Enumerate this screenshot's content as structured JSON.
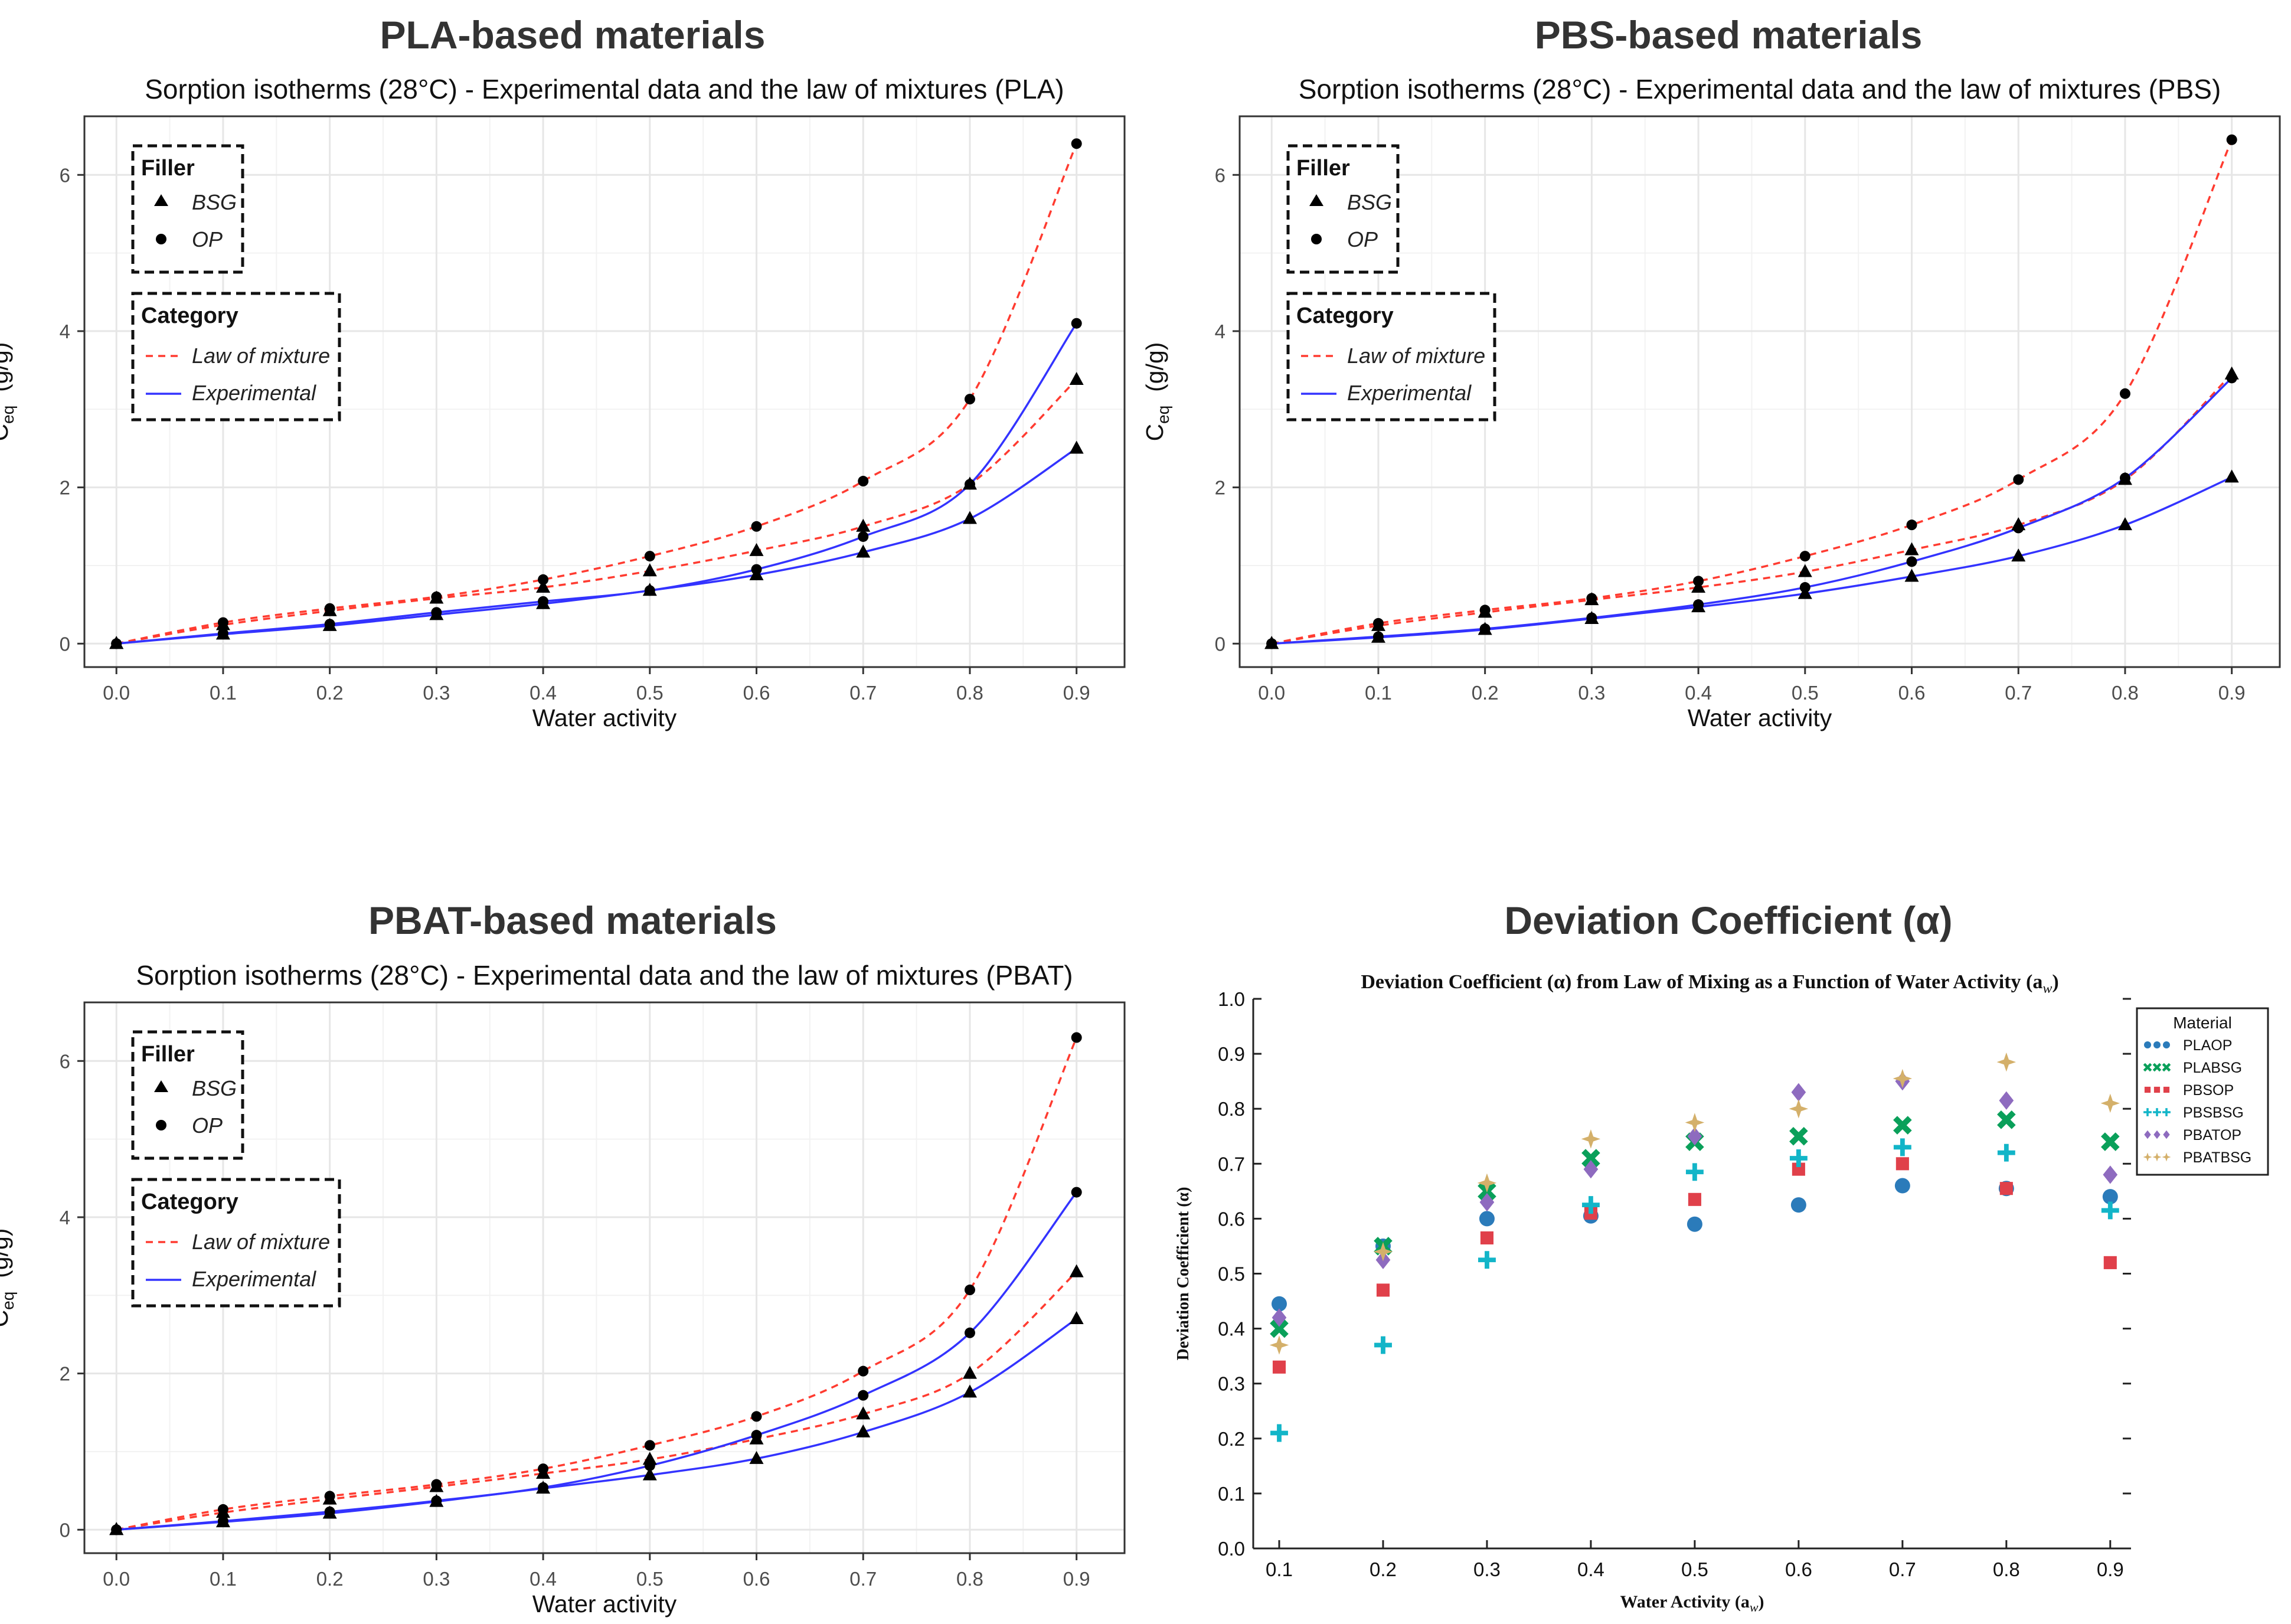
{
  "panels": [
    {
      "heading": "PLA-based materials"
    },
    {
      "heading": "PBS-based materials"
    },
    {
      "heading": "PBAT-based materials"
    },
    {
      "heading": "Deviation Coefficient (α)"
    }
  ],
  "legend": {
    "filler_title": "Filler",
    "filler_items": [
      "BSG",
      "OP"
    ],
    "category_title": "Category",
    "category_items": [
      "Law of mixture",
      "Experimental"
    ],
    "material_title": "Material"
  },
  "colors": {
    "law_of_mixture": "#ff3b30",
    "experimental": "#3333ff",
    "marker": "#000000",
    "PLAOP": "#2b7bba",
    "PLABSG": "#0aa05a",
    "PBSOP": "#e0404a",
    "PBSBSG": "#12b5c8",
    "PBATOP": "#8e6bbf",
    "PBATBSG": "#d4b06a"
  },
  "chart_data": [
    {
      "type": "line",
      "title": "Sorption isotherms (28°C) - Experimental data and the law of mixtures (PLA)",
      "xlabel": "Water activity",
      "ylabel": "C",
      "ylabel_sub": "eq",
      "ylabel_unit": "(g/g)",
      "x": [
        0.0,
        0.1,
        0.2,
        0.3,
        0.4,
        0.5,
        0.6,
        0.7,
        0.8,
        0.9
      ],
      "xticks": [
        "0.0",
        "0.1",
        "0.2",
        "0.3",
        "0.4",
        "0.5",
        "0.6",
        "0.7",
        "0.8",
        "0.9"
      ],
      "yticks": [
        "0",
        "2",
        "4",
        "6"
      ],
      "xlim": [
        -0.03,
        0.945
      ],
      "ylim": [
        -0.3,
        6.75
      ],
      "series": [
        {
          "name": "OP",
          "category": "Law of mixture",
          "marker": "circle",
          "values": [
            0.0,
            0.27,
            0.45,
            0.6,
            0.82,
            1.12,
            1.5,
            2.08,
            3.13,
            6.4
          ]
        },
        {
          "name": "BSG",
          "category": "Law of mixture",
          "marker": "triangle",
          "values": [
            0.0,
            0.24,
            0.42,
            0.58,
            0.72,
            0.93,
            1.19,
            1.5,
            2.04,
            3.38
          ]
        },
        {
          "name": "OP",
          "category": "Experimental",
          "marker": "circle",
          "values": [
            0.0,
            0.13,
            0.25,
            0.4,
            0.54,
            0.68,
            0.95,
            1.37,
            2.04,
            4.1
          ]
        },
        {
          "name": "BSG",
          "category": "Experimental",
          "marker": "triangle",
          "values": [
            0.0,
            0.12,
            0.23,
            0.37,
            0.51,
            0.68,
            0.88,
            1.17,
            1.6,
            2.5
          ]
        }
      ]
    },
    {
      "type": "line",
      "title": "Sorption isotherms (28°C) - Experimental data and the law of mixtures (PBS)",
      "xlabel": "Water activity",
      "ylabel": "C",
      "ylabel_sub": "eq",
      "ylabel_unit": "(g/g)",
      "x": [
        0.0,
        0.1,
        0.2,
        0.3,
        0.4,
        0.5,
        0.6,
        0.7,
        0.8,
        0.9
      ],
      "xticks": [
        "0.0",
        "0.1",
        "0.2",
        "0.3",
        "0.4",
        "0.5",
        "0.6",
        "0.7",
        "0.8",
        "0.9"
      ],
      "yticks": [
        "0",
        "2",
        "4",
        "6"
      ],
      "xlim": [
        -0.03,
        0.945
      ],
      "ylim": [
        -0.3,
        6.75
      ],
      "series": [
        {
          "name": "OP",
          "category": "Law of mixture",
          "marker": "circle",
          "values": [
            0.0,
            0.26,
            0.43,
            0.58,
            0.8,
            1.12,
            1.52,
            2.1,
            3.2,
            6.45
          ]
        },
        {
          "name": "BSG",
          "category": "Law of mixture",
          "marker": "triangle",
          "values": [
            0.0,
            0.23,
            0.4,
            0.56,
            0.72,
            0.92,
            1.2,
            1.52,
            2.1,
            3.45
          ]
        },
        {
          "name": "OP",
          "category": "Experimental",
          "marker": "circle",
          "values": [
            0.0,
            0.09,
            0.19,
            0.33,
            0.5,
            0.72,
            1.05,
            1.48,
            2.12,
            3.4
          ]
        },
        {
          "name": "BSG",
          "category": "Experimental",
          "marker": "triangle",
          "values": [
            0.0,
            0.08,
            0.18,
            0.32,
            0.47,
            0.64,
            0.86,
            1.12,
            1.52,
            2.13
          ]
        }
      ]
    },
    {
      "type": "line",
      "title": "Sorption isotherms (28°C) - Experimental data and the law of mixtures (PBAT)",
      "xlabel": "Water activity",
      "ylabel": "C",
      "ylabel_sub": "eq",
      "ylabel_unit": "(g/g)",
      "x": [
        0.0,
        0.1,
        0.2,
        0.3,
        0.4,
        0.5,
        0.6,
        0.7,
        0.8,
        0.9
      ],
      "xticks": [
        "0.0",
        "0.1",
        "0.2",
        "0.3",
        "0.4",
        "0.5",
        "0.6",
        "0.7",
        "0.8",
        "0.9"
      ],
      "yticks": [
        "0",
        "2",
        "4",
        "6"
      ],
      "xlim": [
        -0.03,
        0.945
      ],
      "ylim": [
        -0.3,
        6.75
      ],
      "series": [
        {
          "name": "OP",
          "category": "Law of mixture",
          "marker": "circle",
          "values": [
            0.0,
            0.26,
            0.43,
            0.58,
            0.78,
            1.08,
            1.45,
            2.03,
            3.07,
            6.3
          ]
        },
        {
          "name": "BSG",
          "category": "Law of mixture",
          "marker": "triangle",
          "values": [
            0.0,
            0.22,
            0.39,
            0.55,
            0.72,
            0.9,
            1.16,
            1.48,
            2.0,
            3.3
          ]
        },
        {
          "name": "OP",
          "category": "Experimental",
          "marker": "circle",
          "values": [
            0.0,
            0.11,
            0.23,
            0.37,
            0.54,
            0.82,
            1.21,
            1.72,
            2.52,
            4.32
          ]
        },
        {
          "name": "BSG",
          "category": "Experimental",
          "marker": "triangle",
          "values": [
            0.0,
            0.1,
            0.21,
            0.36,
            0.53,
            0.7,
            0.91,
            1.25,
            1.76,
            2.7
          ]
        }
      ]
    },
    {
      "type": "scatter",
      "title": "Deviation Coefficient (α) from Law of Mixing as a Function of Water Activity (a",
      "title_sub": "w",
      "title_end": ")",
      "xlabel": "Water Activity (a",
      "xlabel_sub": "w",
      "xlabel_end": ")",
      "ylabel": "Deviation Coefficient (α)",
      "x": [
        0.1,
        0.2,
        0.3,
        0.4,
        0.5,
        0.6,
        0.7,
        0.8,
        0.9
      ],
      "xticks": [
        "0.1",
        "0.2",
        "0.3",
        "0.4",
        "0.5",
        "0.6",
        "0.7",
        "0.8",
        "0.9"
      ],
      "yticks": [
        "0.0",
        "0.1",
        "0.2",
        "0.3",
        "0.4",
        "0.5",
        "0.6",
        "0.7",
        "0.8",
        "0.9",
        "1.0"
      ],
      "xlim": [
        0.075,
        0.92
      ],
      "ylim": [
        0.0,
        1.0
      ],
      "series": [
        {
          "name": "PLAOP",
          "marker": "circle",
          "values": [
            0.445,
            0.55,
            0.6,
            0.605,
            0.59,
            0.625,
            0.66,
            0.655,
            0.64
          ]
        },
        {
          "name": "PLABSG",
          "marker": "x",
          "values": [
            0.4,
            0.55,
            0.65,
            0.71,
            0.74,
            0.75,
            0.77,
            0.78,
            0.74
          ]
        },
        {
          "name": "PBSOP",
          "marker": "square",
          "values": [
            0.33,
            0.47,
            0.565,
            0.61,
            0.635,
            0.69,
            0.7,
            0.655,
            0.52
          ]
        },
        {
          "name": "PBSBSG",
          "marker": "plus",
          "values": [
            0.21,
            0.37,
            0.525,
            0.625,
            0.685,
            0.71,
            0.73,
            0.72,
            0.615
          ]
        },
        {
          "name": "PBATOP",
          "marker": "diamond",
          "values": [
            0.42,
            0.525,
            0.63,
            0.69,
            0.75,
            0.83,
            0.85,
            0.815,
            0.68
          ]
        },
        {
          "name": "PBATBSG",
          "marker": "star",
          "values": [
            0.37,
            0.54,
            0.665,
            0.745,
            0.775,
            0.8,
            0.855,
            0.885,
            0.81
          ]
        }
      ]
    }
  ]
}
